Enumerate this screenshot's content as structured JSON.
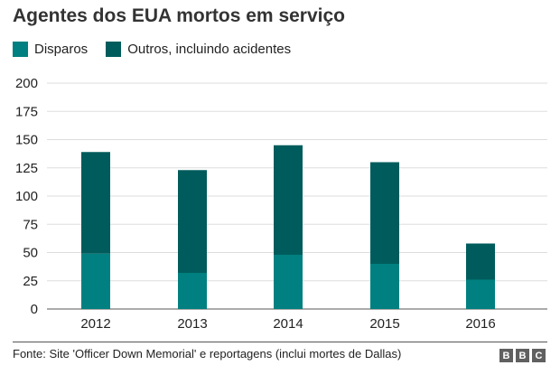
{
  "chart_data": {
    "type": "bar",
    "stacked": true,
    "title": "Agentes dos EUA mortos em serviço",
    "categories": [
      "2012",
      "2013",
      "2014",
      "2015",
      "2016"
    ],
    "series": [
      {
        "name": "Disparos",
        "values": [
          49,
          32,
          48,
          40,
          26
        ],
        "color": "#008080"
      },
      {
        "name": "Outros, incluindo acidentes",
        "values": [
          90,
          91,
          97,
          90,
          32
        ],
        "color": "#005c5c"
      }
    ],
    "ylim": [
      0,
      200
    ],
    "yticks": [
      0,
      25,
      50,
      75,
      100,
      125,
      150,
      175,
      200
    ],
    "grid": true,
    "legend_position": "top-left",
    "xlabel": "",
    "ylabel": ""
  },
  "footer": {
    "source": "Fonte: Site 'Officer Down Memorial' e reportagens (inclui mortes de Dallas)",
    "logo_letters": [
      "B",
      "B",
      "C"
    ]
  }
}
